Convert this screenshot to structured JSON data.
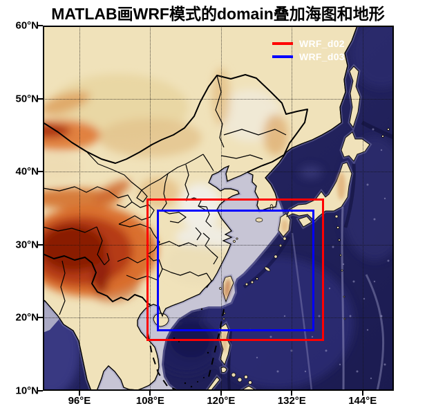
{
  "title": "MATLAB画WRF模式的domain叠加海图和地形",
  "figure": {
    "background": "#ffffff",
    "type": "MATLAB figure"
  },
  "chart_data": {
    "type": "map",
    "title": "MATLAB画WRF模式的domain叠加海图和地形",
    "projection": "equirectangular lat-lon",
    "x_axis": {
      "range": [
        89.8,
        149.3
      ],
      "ticks": [
        {
          "value": 96,
          "label": "96°E"
        },
        {
          "value": 108,
          "label": "108°E"
        },
        {
          "value": 120,
          "label": "120°E"
        },
        {
          "value": 132,
          "label": "132°E"
        },
        {
          "value": 144,
          "label": "144°E"
        }
      ]
    },
    "y_axis": {
      "range": [
        10,
        60
      ],
      "ticks": [
        {
          "value": 10,
          "label": "10°N"
        },
        {
          "value": 20,
          "label": "20°N"
        },
        {
          "value": 30,
          "label": "30°N"
        },
        {
          "value": 40,
          "label": "40°N"
        },
        {
          "value": 50,
          "label": "50°N"
        },
        {
          "value": 60,
          "label": "60°N"
        }
      ]
    },
    "grid": true,
    "legend": {
      "position": "northeast",
      "text_color": "#ffffff",
      "items": [
        {
          "label": "WRF_d02",
          "color": "#ff0000"
        },
        {
          "label": "WRF_d03",
          "color": "#0000ff"
        }
      ]
    },
    "domains": [
      {
        "name": "WRF_d02",
        "color": "#ff0000",
        "lon_min": 107.6,
        "lon_max": 137.2,
        "lat_min": 17.0,
        "lat_max": 36.1
      },
      {
        "name": "WRF_d03",
        "color": "#0000ff",
        "lon_min": 109.4,
        "lon_max": 135.6,
        "lat_min": 18.3,
        "lat_max": 34.6
      }
    ],
    "basemap": {
      "land_color": "#f0e2ba",
      "shallow_sea_color": "#c7c5d5",
      "deep_sea_color": "#23235f",
      "highland_color": "#8a1a06",
      "boundary_color": "#000000",
      "features": [
        "China province boundaries",
        "national boundaries",
        "coastlines",
        "terrain shading",
        "ocean bathymetry shading",
        "South China Sea dashed line"
      ]
    }
  }
}
